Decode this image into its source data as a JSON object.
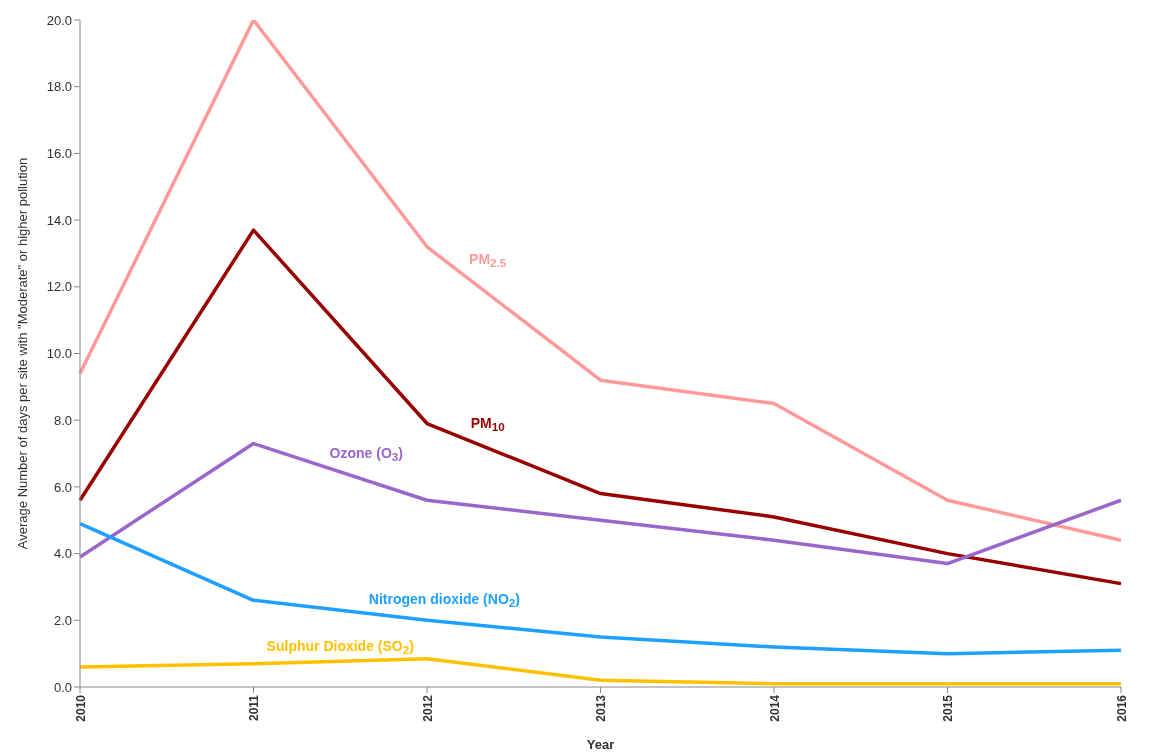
{
  "chart_data": {
    "type": "line",
    "xlabel": "Year",
    "ylabel": "Average Number  of days per site with \"Moderate\" or higher pollution",
    "categories": [
      "2010",
      "2011",
      "2012",
      "2013",
      "2014",
      "2015",
      "2016"
    ],
    "series": [
      {
        "name": "PM$_{2.5}$",
        "color": "#ff9999",
        "values": [
          9.4,
          20.0,
          13.2,
          9.2,
          8.5,
          5.6,
          4.4
        ]
      },
      {
        "name": "PM$_{10}$",
        "color": "#990000",
        "values": [
          5.6,
          13.7,
          7.9,
          5.8,
          5.1,
          4.0,
          3.1
        ]
      },
      {
        "name": "Ozone (O$_{3}$)",
        "color": "#9966cc",
        "values": [
          3.9,
          7.3,
          5.6,
          5.0,
          4.4,
          3.7,
          5.6
        ]
      },
      {
        "name": "Nitrogen dioxide (NO$_{2}$)",
        "color": "#1f9fff",
        "values": [
          4.9,
          2.6,
          2.0,
          1.5,
          1.2,
          1.0,
          1.1
        ]
      },
      {
        "name": "Sulphur Dioxide (SO$_{2}$)",
        "color": "#ffc000",
        "values": [
          0.6,
          0.7,
          0.85,
          0.2,
          0.1,
          0.1,
          0.1
        ]
      }
    ],
    "ylim": [
      0,
      20
    ],
    "yticks": [
      {
        "value": 0,
        "label": "0.0"
      },
      {
        "value": 2,
        "label": "2.0"
      },
      {
        "value": 4,
        "label": "4.0"
      },
      {
        "value": 6,
        "label": "6.0"
      },
      {
        "value": 8,
        "label": "8.0"
      },
      {
        "value": 10,
        "label": "10.0"
      },
      {
        "value": 12,
        "label": "12.0"
      },
      {
        "value": 14,
        "label": "14.0"
      },
      {
        "value": 16,
        "label": "16.0"
      },
      {
        "value": 18,
        "label": "18.0"
      },
      {
        "value": 20,
        "label": "20.0"
      }
    ],
    "grid": false,
    "legend": false,
    "marker": "none",
    "line_style": "solid"
  }
}
